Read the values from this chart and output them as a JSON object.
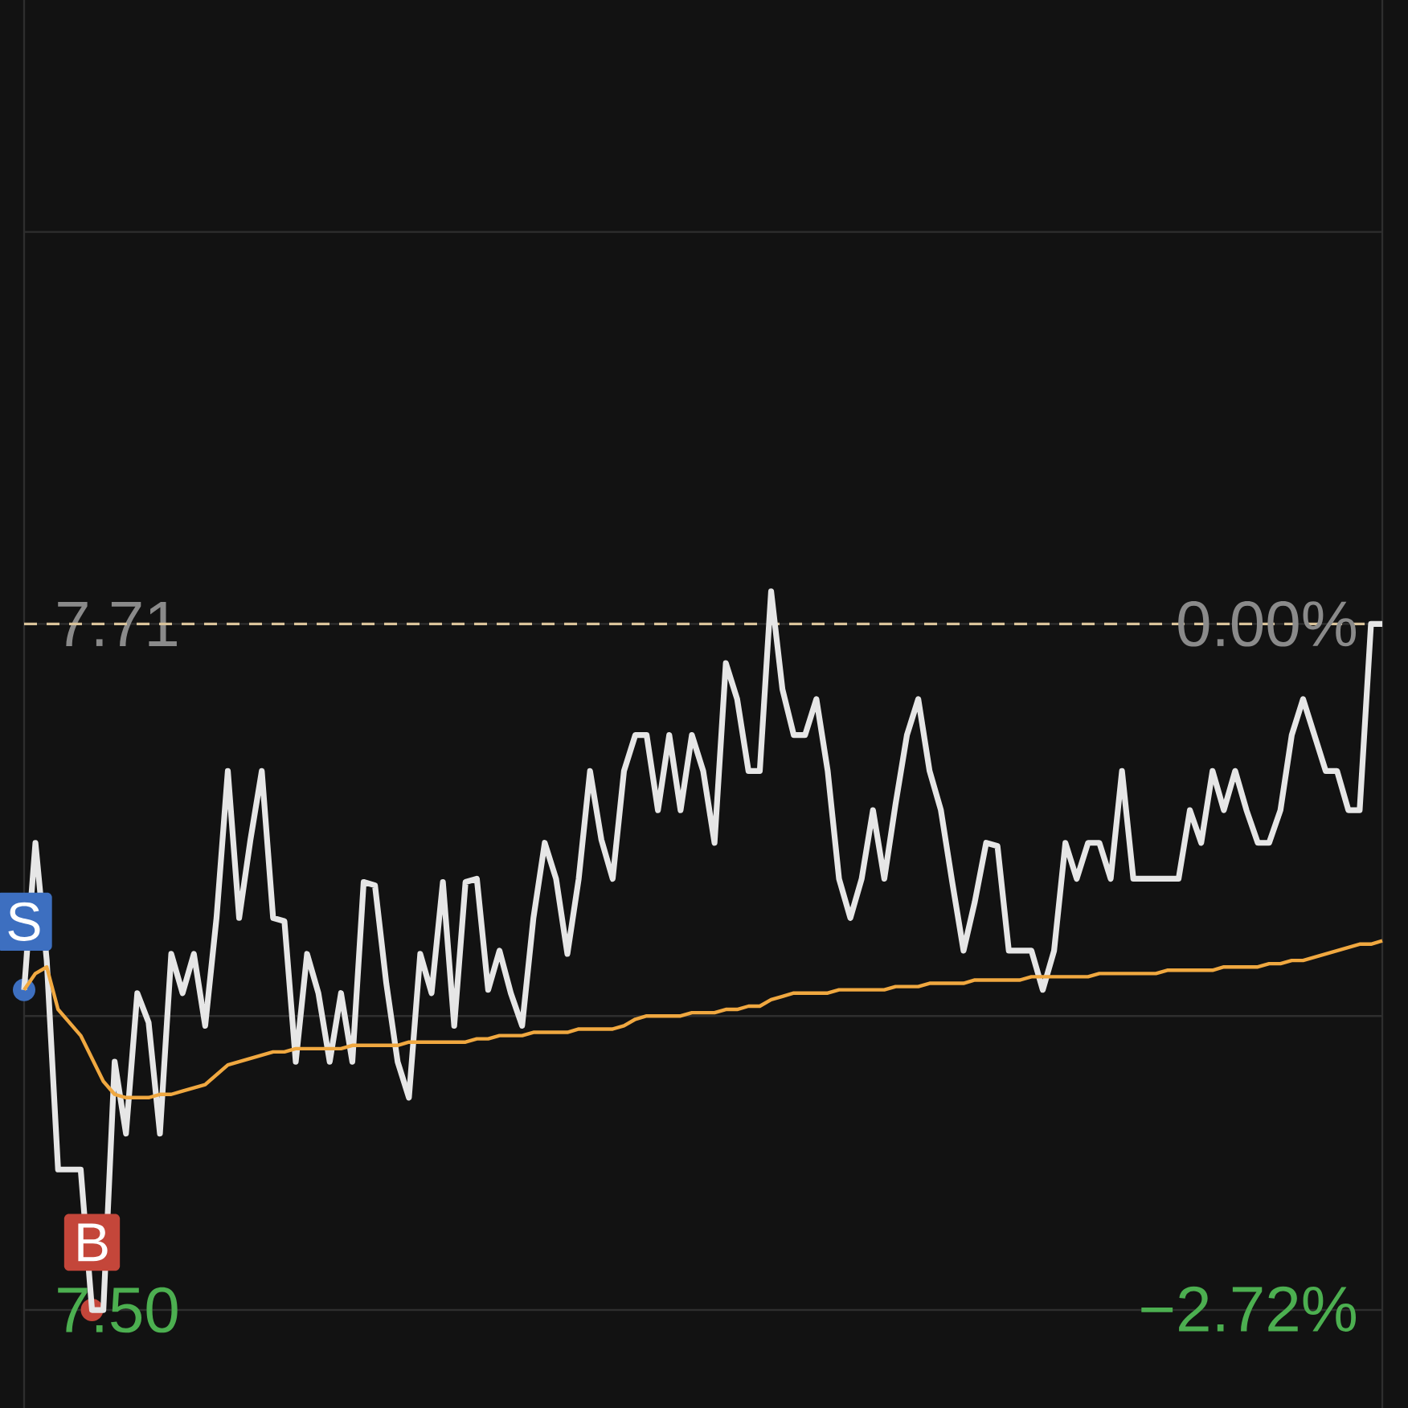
{
  "chart_data": {
    "type": "line",
    "categories": [
      null,
      null,
      null,
      null,
      null,
      null,
      null,
      null,
      null,
      null,
      null,
      null,
      null,
      null,
      null,
      null,
      null,
      null,
      null,
      null,
      null,
      null,
      null,
      null,
      null,
      null,
      null,
      null,
      null,
      null,
      null,
      null,
      null,
      null,
      null,
      null,
      null,
      null,
      null,
      null,
      null,
      null,
      null,
      null,
      null,
      null,
      null,
      null,
      null,
      null,
      null,
      null,
      null,
      null,
      null,
      null,
      null,
      null,
      null,
      null,
      null,
      null,
      null,
      null,
      null,
      null,
      null,
      null,
      null,
      null,
      null,
      null,
      null,
      null,
      null,
      null,
      null,
      null,
      null,
      null,
      null,
      null,
      null,
      null,
      null,
      null,
      null,
      null,
      null,
      null,
      null,
      null,
      null,
      null,
      null,
      null,
      null,
      null,
      null,
      null,
      null,
      null,
      null,
      null,
      null,
      null,
      null,
      null,
      null,
      null,
      null,
      null,
      null,
      null,
      null,
      null,
      null,
      null,
      null,
      null,
      null
    ],
    "ylim": [
      7.47,
      7.901
    ],
    "yticks": [
      {
        "value": 7.5,
        "label": "7.50"
      },
      {
        "value": 7.59,
        "label": null
      },
      {
        "value": 7.71,
        "label": "7.71"
      },
      {
        "value": 7.83,
        "label": null
      }
    ],
    "y2lim": [
      -3.113,
      2.477
    ],
    "y2ticks": [
      {
        "value": -2.72,
        "label": "−2.72%"
      },
      {
        "value": 0,
        "label": "0.00%"
      }
    ],
    "grid": "y",
    "marker": "none",
    "line_style": "solid",
    "ref_lines": [
      {
        "axis": "y",
        "value": 7.71,
        "color": "#d9c39a",
        "line_style": "dashed"
      }
    ],
    "annotations": [
      {
        "text": "S",
        "y": 7.598
      },
      {
        "text": "B",
        "y": 7.5
      }
    ],
    "series": [
      {
        "color": "#e6e6e6",
        "values": [
          7.598,
          7.643,
          7.607,
          7.543,
          7.543,
          7.543,
          7.5,
          7.5,
          7.576,
          7.554,
          7.597,
          7.588,
          7.554,
          7.609,
          7.597,
          7.609,
          7.587,
          7.62,
          7.665,
          7.62,
          7.644,
          7.665,
          7.62,
          7.619,
          7.576,
          7.609,
          7.597,
          7.576,
          7.597,
          7.576,
          7.631,
          7.63,
          7.6,
          7.576,
          7.565,
          7.609,
          7.597,
          7.631,
          7.587,
          7.631,
          7.632,
          7.598,
          7.61,
          7.597,
          7.587,
          7.62,
          7.643,
          7.632,
          7.609,
          7.632,
          7.665,
          7.644,
          7.632,
          7.665,
          7.676,
          7.676,
          7.653,
          7.676,
          7.653,
          7.676,
          7.665,
          7.643,
          7.698,
          7.687,
          7.665,
          7.665,
          7.72,
          7.69,
          7.676,
          7.676,
          7.687,
          7.665,
          7.632,
          7.62,
          7.632,
          7.653,
          7.632,
          7.655,
          7.676,
          7.687,
          7.665,
          7.653,
          7.631,
          7.61,
          7.625,
          7.643,
          7.642,
          7.61,
          7.61,
          7.61,
          7.598,
          7.61,
          7.643,
          7.632,
          7.643,
          7.643,
          7.632,
          7.665,
          7.632,
          7.632,
          7.632,
          7.632,
          7.632,
          7.653,
          7.643,
          7.665,
          7.653,
          7.665,
          7.653,
          7.643,
          7.643,
          7.653,
          7.676,
          7.687,
          7.676,
          7.665,
          7.665,
          7.653,
          7.653,
          7.71,
          7.71
        ]
      },
      {
        "color": "#f0a840",
        "values": [
          7.598,
          7.603,
          7.605,
          7.592,
          7.588,
          7.584,
          7.577,
          7.57,
          7.566,
          7.565,
          7.565,
          7.565,
          7.566,
          7.566,
          7.567,
          7.568,
          7.569,
          7.572,
          7.575,
          7.576,
          7.577,
          7.578,
          7.579,
          7.579,
          7.58,
          7.58,
          7.58,
          7.58,
          7.58,
          7.581,
          7.581,
          7.581,
          7.581,
          7.581,
          7.582,
          7.582,
          7.582,
          7.582,
          7.582,
          7.582,
          7.583,
          7.583,
          7.584,
          7.584,
          7.584,
          7.585,
          7.585,
          7.585,
          7.585,
          7.586,
          7.586,
          7.586,
          7.586,
          7.587,
          7.589,
          7.59,
          7.59,
          7.59,
          7.59,
          7.591,
          7.591,
          7.591,
          7.592,
          7.592,
          7.593,
          7.593,
          7.595,
          7.596,
          7.597,
          7.597,
          7.597,
          7.597,
          7.598,
          7.598,
          7.598,
          7.598,
          7.598,
          7.599,
          7.599,
          7.599,
          7.6,
          7.6,
          7.6,
          7.6,
          7.601,
          7.601,
          7.601,
          7.601,
          7.601,
          7.602,
          7.602,
          7.602,
          7.602,
          7.602,
          7.602,
          7.603,
          7.603,
          7.603,
          7.603,
          7.603,
          7.603,
          7.604,
          7.604,
          7.604,
          7.604,
          7.604,
          7.605,
          7.605,
          7.605,
          7.605,
          7.606,
          7.606,
          7.607,
          7.607,
          7.608,
          7.609,
          7.61,
          7.611,
          7.612,
          7.612,
          7.613
        ]
      }
    ]
  }
}
